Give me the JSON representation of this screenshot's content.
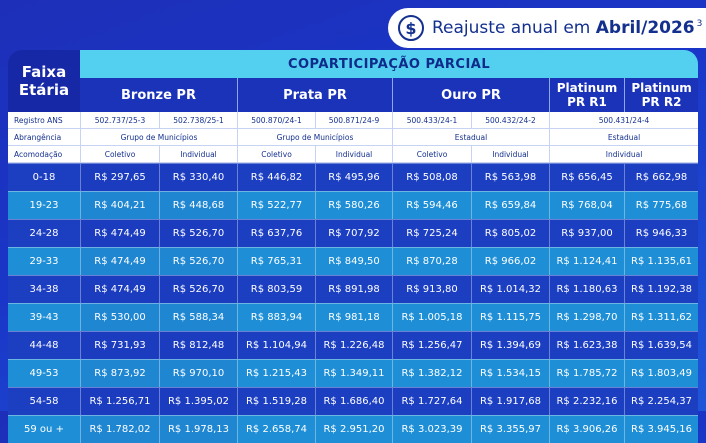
{
  "badge": {
    "icon": "dollar-coin-icon",
    "text_pre": "Reajuste anual em ",
    "text_bold": "Abril/2026",
    "sup": "3"
  },
  "header": {
    "faixa": "Faixa Etária",
    "copart": "COPARTICIPAÇÃO PARCIAL",
    "plans": [
      "Bronze PR",
      "Prata PR",
      "Ouro PR",
      "Platinum PR R1",
      "Platinum PR R2"
    ]
  },
  "info": {
    "registro_label": "Registro ANS",
    "registros": [
      "502.737/25-3",
      "502.738/25-1",
      "500.870/24-1",
      "500.871/24-9",
      "500.433/24-1",
      "500.432/24-2",
      "500.431/24-4"
    ],
    "abrangencia_label": "Abrangência",
    "abrangencia": [
      "Grupo de Municípios",
      "Grupo de Municípios",
      "Estadual",
      "Estadual"
    ],
    "acomodacao_label": "Acomodação",
    "acomodacao": [
      "Coletivo",
      "Individual",
      "Coletivo",
      "Individual",
      "Coletivo",
      "Individual",
      "Individual"
    ]
  },
  "rows": [
    {
      "age": "0-18",
      "values": [
        "R$ 297,65",
        "R$ 330,40",
        "R$ 446,82",
        "R$ 495,96",
        "R$ 508,08",
        "R$ 563,98",
        "R$ 656,45",
        "R$ 662,98"
      ]
    },
    {
      "age": "19-23",
      "values": [
        "R$ 404,21",
        "R$ 448,68",
        "R$ 522,77",
        "R$ 580,26",
        "R$ 594,46",
        "R$ 659,84",
        "R$ 768,04",
        "R$ 775,68"
      ]
    },
    {
      "age": "24-28",
      "values": [
        "R$ 474,49",
        "R$ 526,70",
        "R$ 637,76",
        "R$ 707,92",
        "R$ 725,24",
        "R$ 805,02",
        "R$ 937,00",
        "R$ 946,33"
      ]
    },
    {
      "age": "29-33",
      "values": [
        "R$ 474,49",
        "R$ 526,70",
        "R$ 765,31",
        "R$ 849,50",
        "R$ 870,28",
        "R$ 966,02",
        "R$ 1.124,41",
        "R$ 1.135,61"
      ]
    },
    {
      "age": "34-38",
      "values": [
        "R$ 474,49",
        "R$ 526,70",
        "R$ 803,59",
        "R$ 891,98",
        "R$ 913,80",
        "R$ 1.014,32",
        "R$ 1.180,63",
        "R$ 1.192,38"
      ]
    },
    {
      "age": "39-43",
      "values": [
        "R$ 530,00",
        "R$ 588,34",
        "R$ 883,94",
        "R$ 981,18",
        "R$ 1.005,18",
        "R$ 1.115,75",
        "R$ 1.298,70",
        "R$ 1.311,62"
      ]
    },
    {
      "age": "44-48",
      "values": [
        "R$ 731,93",
        "R$ 812,48",
        "R$ 1.104,94",
        "R$ 1.226,48",
        "R$ 1.256,47",
        "R$ 1.394,69",
        "R$ 1.623,38",
        "R$ 1.639,54"
      ]
    },
    {
      "age": "49-53",
      "values": [
        "R$ 873,92",
        "R$ 970,10",
        "R$ 1.215,43",
        "R$ 1.349,11",
        "R$ 1.382,12",
        "R$ 1.534,15",
        "R$ 1.785,72",
        "R$ 1.803,49"
      ]
    },
    {
      "age": "54-58",
      "values": [
        "R$ 1.256,71",
        "R$ 1.395,02",
        "R$ 1.519,28",
        "R$ 1.686,40",
        "R$ 1.727,64",
        "R$ 1.917,68",
        "R$ 2.232,16",
        "R$ 2.254,37"
      ]
    },
    {
      "age": "59 ou +",
      "values": [
        "R$ 1.782,02",
        "R$ 1.978,13",
        "R$ 2.658,74",
        "R$ 2.951,20",
        "R$ 3.023,39",
        "R$ 3.355,97",
        "R$ 3.906,26",
        "R$ 3.945,16"
      ]
    }
  ]
}
